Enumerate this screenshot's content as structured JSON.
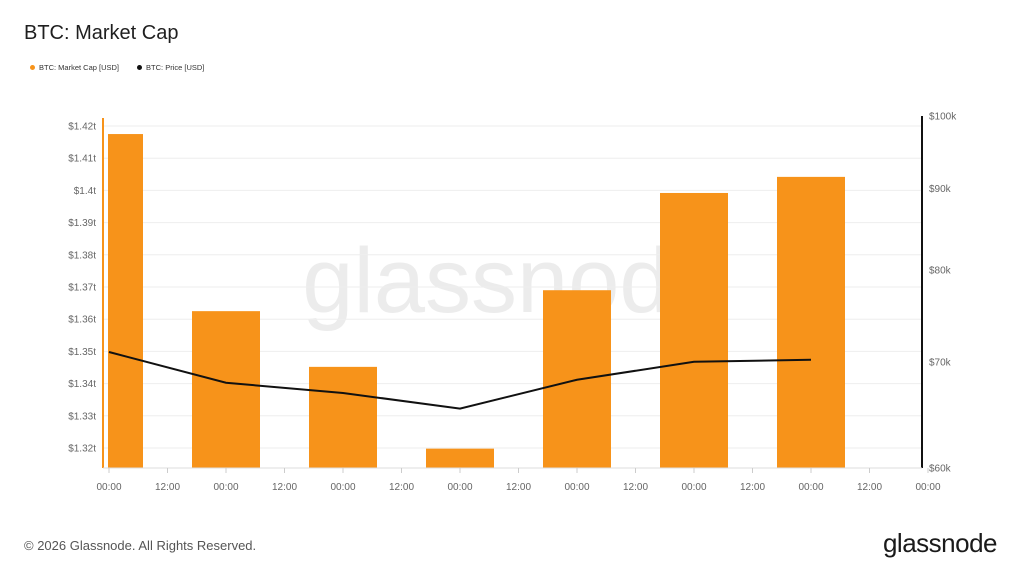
{
  "title": "BTC: Market Cap",
  "legend": [
    {
      "label": "BTC: Market Cap [USD]",
      "color": "#f7931a"
    },
    {
      "label": "BTC: Price [USD]",
      "color": "#111111"
    }
  ],
  "watermark": "glassnode",
  "footer": "© 2026 Glassnode. All Rights Reserved.",
  "brand": "glassnode",
  "chart_data": {
    "type": "bar",
    "x_ticks": [
      "00:00",
      "12:00",
      "00:00",
      "12:00",
      "00:00",
      "12:00",
      "00:00",
      "12:00",
      "00:00",
      "12:00",
      "00:00",
      "12:00",
      "00:00",
      "12:00",
      "00:00"
    ],
    "series": [
      {
        "name": "BTC: Market Cap [USD]",
        "type": "bar",
        "axis": "left",
        "color": "#f7931a",
        "values": [
          1.4175,
          1.3625,
          1.3452,
          1.3198,
          1.369,
          1.3992,
          1.4042
        ]
      },
      {
        "name": "BTC: Price [USD]",
        "type": "line",
        "axis": "right",
        "color": "#111111",
        "values": [
          71000,
          67900,
          66900,
          65400,
          68200,
          70000,
          70200
        ]
      }
    ],
    "left_axis": {
      "ticks": [
        1.42,
        1.41,
        1.4,
        1.39,
        1.38,
        1.37,
        1.36,
        1.35,
        1.34,
        1.33,
        1.32
      ],
      "tick_labels": [
        "$1.42t",
        "$1.41t",
        "$1.4t",
        "$1.39t",
        "$1.38t",
        "$1.37t",
        "$1.36t",
        "$1.35t",
        "$1.34t",
        "$1.33t",
        "$1.32t"
      ]
    },
    "right_axis": {
      "scale": "log",
      "ticks": [
        100000,
        90000,
        80000,
        70000,
        60000
      ],
      "tick_labels": [
        "$100k",
        "$90k",
        "$80k",
        "$70k",
        "$60k"
      ]
    },
    "grid": true,
    "legend_position": "top-left"
  }
}
